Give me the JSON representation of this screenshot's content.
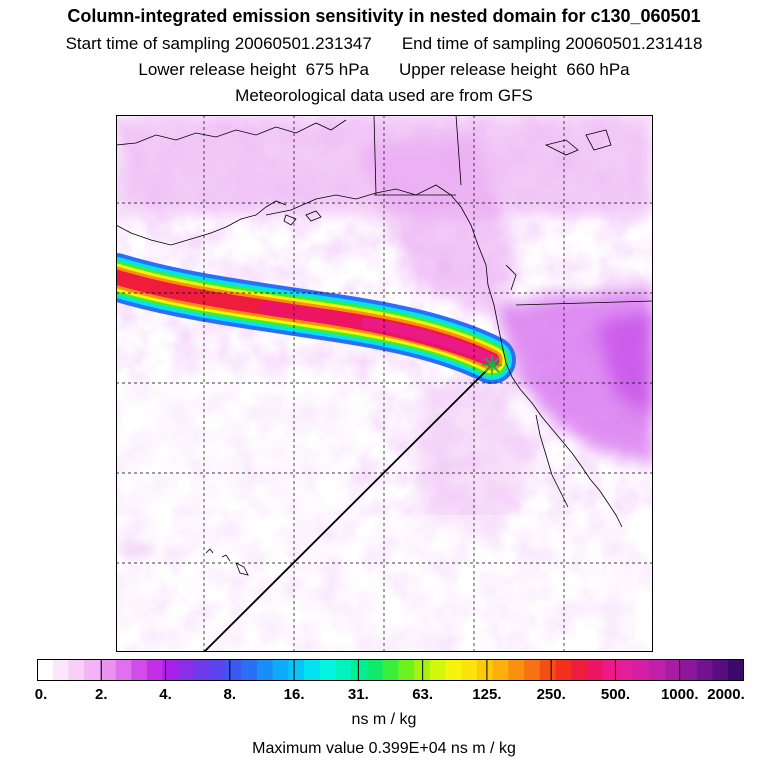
{
  "header": {
    "title": "Column-integrated emission sensitivity in nested domain for c130_060501",
    "start_label": "Start time of sampling",
    "start_value": "20060501.231347",
    "end_label": "End time of sampling",
    "end_value": "20060501.231418",
    "lower_label": "Lower release height",
    "lower_value": "675 hPa",
    "upper_label": "Upper release height",
    "upper_value": "660 hPa",
    "met": "Meteorological data used are from GFS"
  },
  "map": {
    "release_marker_icon": "green-asterisk-icon",
    "coastline_color": "#000000",
    "grid_color": "#000000",
    "background_field_color": "#e8a8f4",
    "plume_core_color": "#ff1a6e"
  },
  "colorbar": {
    "labels": [
      "0.",
      "2.",
      "4.",
      "8.",
      "16.",
      "31.",
      "63.",
      "125.",
      "250.",
      "500.",
      "1000.",
      "2000."
    ],
    "colors": [
      "#ffffff",
      "#fbe6fb",
      "#f7cff7",
      "#f2b4f4",
      "#ea94f0",
      "#e070ee",
      "#d24cea",
      "#c22fe6",
      "#a91ee8",
      "#8a2ee8",
      "#6f3aea",
      "#5a44ee",
      "#3c58f2",
      "#2a70f6",
      "#1a8ef8",
      "#10aafa",
      "#06c6f8",
      "#04e2f2",
      "#02f6e2",
      "#00f4bc",
      "#00ee94",
      "#10ea6a",
      "#3aee3c",
      "#6cf21e",
      "#a2f410",
      "#d2f60c",
      "#f6f40a",
      "#fce40a",
      "#fcca0a",
      "#fcb00c",
      "#f8920e",
      "#f67212",
      "#f45016",
      "#f2301c",
      "#f01c3e",
      "#ee1464",
      "#ec1a86",
      "#e21e9a",
      "#d41fa6",
      "#c01fa8",
      "#a81ca4",
      "#8c169c",
      "#701292",
      "#560e80",
      "#3c0a6a"
    ],
    "units": "ns m / kg",
    "max_value_text": "Maximum value  0.399E+04 ns m / kg"
  }
}
